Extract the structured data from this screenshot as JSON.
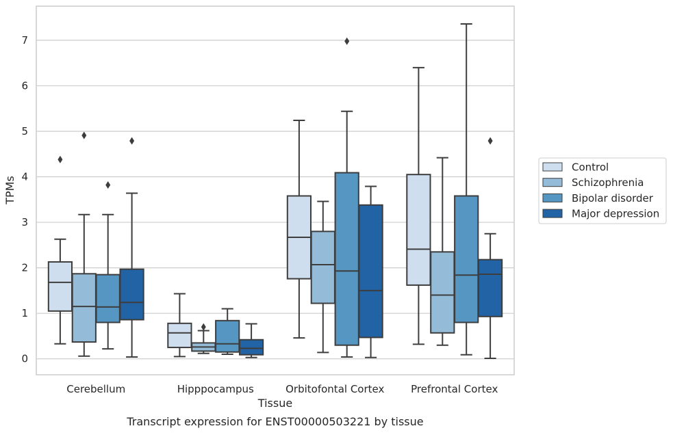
{
  "caption": "Transcript expression for ENST00000503221 by tissue",
  "chart_data": {
    "type": "boxplot",
    "xlabel": "Tissue",
    "ylabel": "TPMs",
    "categories": [
      "Cerebellum",
      "Hipppocampus",
      "Orbitofontal Cortex",
      "Prefrontal Cortex"
    ],
    "ylim": [
      -0.35,
      7.75
    ],
    "yticks": [
      "0",
      "1",
      "2",
      "3",
      "4",
      "5",
      "6",
      "7"
    ],
    "grid": "horizontal",
    "legend_position": "right",
    "series": [
      {
        "name": "Control",
        "color": "#cfdeef",
        "boxes": [
          {
            "whislo": 0.33,
            "q1": 1.05,
            "med": 1.68,
            "q3": 2.13,
            "whishi": 2.63,
            "fliers": [
              4.38
            ]
          },
          {
            "whislo": 0.05,
            "q1": 0.25,
            "med": 0.57,
            "q3": 0.78,
            "whishi": 1.43,
            "fliers": []
          },
          {
            "whislo": 0.46,
            "q1": 1.76,
            "med": 2.67,
            "q3": 3.58,
            "whishi": 5.24,
            "fliers": []
          },
          {
            "whislo": 0.32,
            "q1": 1.62,
            "med": 2.41,
            "q3": 4.05,
            "whishi": 6.4,
            "fliers": []
          }
        ]
      },
      {
        "name": "Schizophrenia",
        "color": "#94bcd9",
        "boxes": [
          {
            "whislo": 0.06,
            "q1": 0.37,
            "med": 1.15,
            "q3": 1.87,
            "whishi": 3.17,
            "fliers": [
              4.91
            ]
          },
          {
            "whislo": 0.12,
            "q1": 0.17,
            "med": 0.26,
            "q3": 0.35,
            "whishi": 0.62,
            "fliers": [
              0.7
            ]
          },
          {
            "whislo": 0.14,
            "q1": 1.22,
            "med": 2.07,
            "q3": 2.8,
            "whishi": 3.46,
            "fliers": []
          },
          {
            "whislo": 0.3,
            "q1": 0.57,
            "med": 1.4,
            "q3": 2.35,
            "whishi": 4.42,
            "fliers": []
          }
        ]
      },
      {
        "name": "Bipolar disorder",
        "color": "#5596c2",
        "boxes": [
          {
            "whislo": 0.22,
            "q1": 0.8,
            "med": 1.14,
            "q3": 1.85,
            "whishi": 3.17,
            "fliers": [
              3.82
            ]
          },
          {
            "whislo": 0.1,
            "q1": 0.15,
            "med": 0.33,
            "q3": 0.84,
            "whishi": 1.1,
            "fliers": []
          },
          {
            "whislo": 0.04,
            "q1": 0.3,
            "med": 1.93,
            "q3": 4.09,
            "whishi": 5.44,
            "fliers": [
              6.98
            ]
          },
          {
            "whislo": 0.09,
            "q1": 0.8,
            "med": 1.84,
            "q3": 3.58,
            "whishi": 7.36,
            "fliers": []
          }
        ]
      },
      {
        "name": "Major depression",
        "color": "#2163a4",
        "boxes": [
          {
            "whislo": 0.04,
            "q1": 0.86,
            "med": 1.24,
            "q3": 1.97,
            "whishi": 3.64,
            "fliers": [
              4.79
            ]
          },
          {
            "whislo": 0.03,
            "q1": 0.09,
            "med": 0.23,
            "q3": 0.42,
            "whishi": 0.77,
            "fliers": []
          },
          {
            "whislo": 0.03,
            "q1": 0.47,
            "med": 1.5,
            "q3": 3.38,
            "whishi": 3.79,
            "fliers": []
          },
          {
            "whislo": 0.01,
            "q1": 0.93,
            "med": 1.86,
            "q3": 2.18,
            "whishi": 2.75,
            "fliers": [
              4.79
            ]
          }
        ]
      }
    ]
  }
}
